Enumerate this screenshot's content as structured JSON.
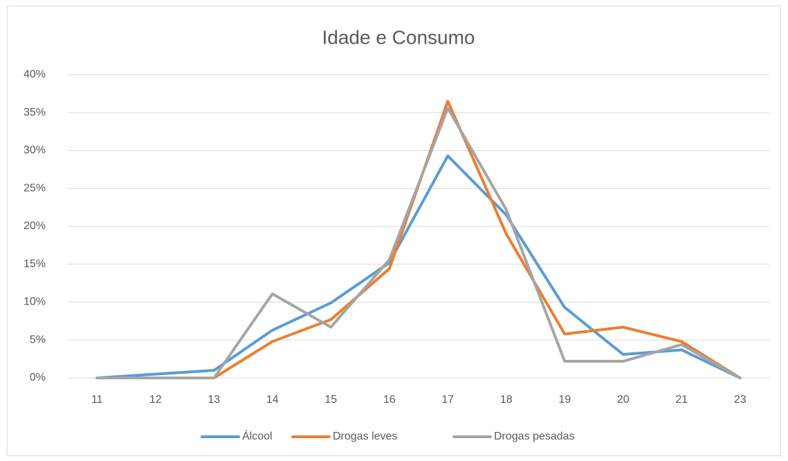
{
  "chart_data": {
    "type": "line",
    "title": "Idade e Consumo",
    "categories": [
      "11",
      "12",
      "13",
      "14",
      "15",
      "16",
      "17",
      "18",
      "19",
      "20",
      "21",
      "23"
    ],
    "series": [
      {
        "name": "Álcool",
        "color": "#5b9bd5",
        "values": [
          0,
          0.5,
          1.0,
          6.3,
          9.9,
          15.2,
          29.3,
          21.5,
          9.3,
          3.1,
          3.7,
          0
        ]
      },
      {
        "name": "Drogas leves",
        "color": "#ed7d31",
        "values": [
          0,
          0,
          0,
          4.8,
          7.7,
          14.4,
          36.5,
          19.0,
          5.8,
          6.7,
          4.8,
          0
        ]
      },
      {
        "name": "Drogas pesadas",
        "color": "#a5a5a5",
        "values": [
          0,
          0,
          0,
          11.1,
          6.7,
          15.6,
          35.6,
          22.2,
          2.2,
          2.2,
          4.4,
          0
        ]
      }
    ],
    "ylim": [
      0,
      40
    ],
    "yticks": [
      {
        "value": 0,
        "label": "0%"
      },
      {
        "value": 5,
        "label": "5%"
      },
      {
        "value": 10,
        "label": "10%"
      },
      {
        "value": 15,
        "label": "15%"
      },
      {
        "value": 20,
        "label": "20%"
      },
      {
        "value": 25,
        "label": "25%"
      },
      {
        "value": 30,
        "label": "30%"
      },
      {
        "value": 35,
        "label": "35%"
      },
      {
        "value": 40,
        "label": "40%"
      }
    ],
    "grid": true,
    "legend": "bottom"
  }
}
